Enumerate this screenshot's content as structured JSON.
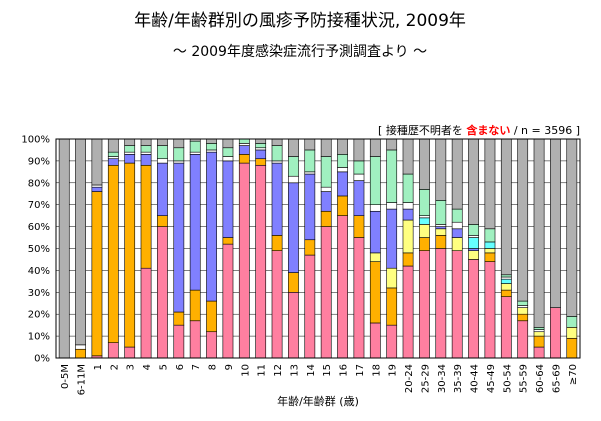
{
  "chart_data": {
    "type": "bar",
    "stacked": true,
    "percent": true,
    "title": "年齢/年齢群別の風疹予防接種状況, 2009年",
    "subtitle": "～ 2009年度感染症流行予測調査より ～",
    "note_prefix": "[ 接種歴不明者を ",
    "note_emphasis": "含まない",
    "note_suffix": " / n = 3596 ]",
    "xlabel": "年齢/年齢群 (歳)",
    "ylabel": "",
    "ylim": [
      0,
      100
    ],
    "yticks": [
      "0%",
      "10%",
      "20%",
      "30%",
      "40%",
      "50%",
      "60%",
      "70%",
      "80%",
      "90%",
      "100%"
    ],
    "grid": true,
    "legend": "none",
    "categories": [
      "0-5M",
      "6-11M",
      "1",
      "2",
      "3",
      "4",
      "5",
      "6",
      "7",
      "8",
      "9",
      "10",
      "11",
      "12",
      "13",
      "14",
      "15",
      "16",
      "17",
      "18",
      "19",
      "20-24",
      "25-29",
      "30-34",
      "35-39",
      "40-44",
      "45-49",
      "50-54",
      "55-59",
      "60-64",
      "65-69",
      "≥70"
    ],
    "series": [
      {
        "color": "#ff7fa0",
        "values": [
          0,
          0,
          1,
          7,
          5,
          41,
          60,
          15,
          17,
          12,
          52,
          89,
          88,
          49,
          30,
          47,
          60,
          65,
          55,
          16,
          15,
          42,
          49,
          50,
          49,
          45,
          44,
          28,
          17,
          5,
          23,
          0
        ]
      },
      {
        "color": "#ffb000",
        "values": [
          0,
          4,
          75,
          81,
          84,
          47,
          5,
          6,
          14,
          14,
          3,
          4,
          3,
          7,
          9,
          7,
          7,
          9,
          10,
          28,
          17,
          6,
          6,
          6,
          0,
          0,
          4,
          3,
          3,
          5,
          0,
          9
        ]
      },
      {
        "color": "#ffff80",
        "values": [
          0,
          0,
          0,
          0,
          0,
          0,
          0,
          0,
          0,
          0,
          0,
          0,
          0,
          0,
          0,
          0,
          0,
          0,
          0,
          4,
          9,
          15,
          6,
          3,
          6,
          4,
          2,
          3,
          3,
          2,
          0,
          5
        ]
      },
      {
        "color": "#8080ff",
        "values": [
          0,
          0,
          2,
          3,
          4,
          5,
          24,
          68,
          62,
          68,
          35,
          4,
          4,
          33,
          41,
          30,
          9,
          11,
          16,
          19,
          27,
          5,
          0,
          1,
          4,
          1,
          0,
          0,
          0,
          0,
          0,
          0
        ]
      },
      {
        "color": "#66ffff",
        "values": [
          0,
          0,
          0,
          0,
          0,
          0,
          0,
          0,
          0,
          0,
          0,
          0,
          0,
          0,
          0,
          0,
          0,
          0,
          0,
          0,
          0,
          0,
          3,
          0,
          0,
          5,
          3,
          2,
          0,
          0,
          0,
          0
        ]
      },
      {
        "color": "#ffffff",
        "values": [
          0,
          2,
          1,
          1,
          1,
          1,
          2,
          1,
          1,
          1,
          2,
          1,
          1,
          1,
          3,
          1,
          2,
          2,
          3,
          3,
          3,
          3,
          1,
          1,
          3,
          1,
          0,
          1,
          1,
          1,
          0,
          0
        ]
      },
      {
        "color": "#a0f0c0",
        "values": [
          0,
          0,
          0,
          2,
          3,
          3,
          6,
          6,
          5,
          3,
          4,
          2,
          2,
          7,
          9,
          10,
          14,
          6,
          6,
          22,
          24,
          13,
          12,
          11,
          6,
          5,
          6,
          1,
          2,
          1,
          0,
          5
        ]
      },
      {
        "color": "#b0b0b0",
        "values": [
          100,
          94,
          21,
          6,
          3,
          3,
          3,
          4,
          1,
          2,
          4,
          0,
          2,
          3,
          8,
          5,
          8,
          7,
          10,
          8,
          5,
          16,
          23,
          28,
          32,
          39,
          41,
          62,
          74,
          86,
          77,
          81
        ]
      }
    ]
  }
}
